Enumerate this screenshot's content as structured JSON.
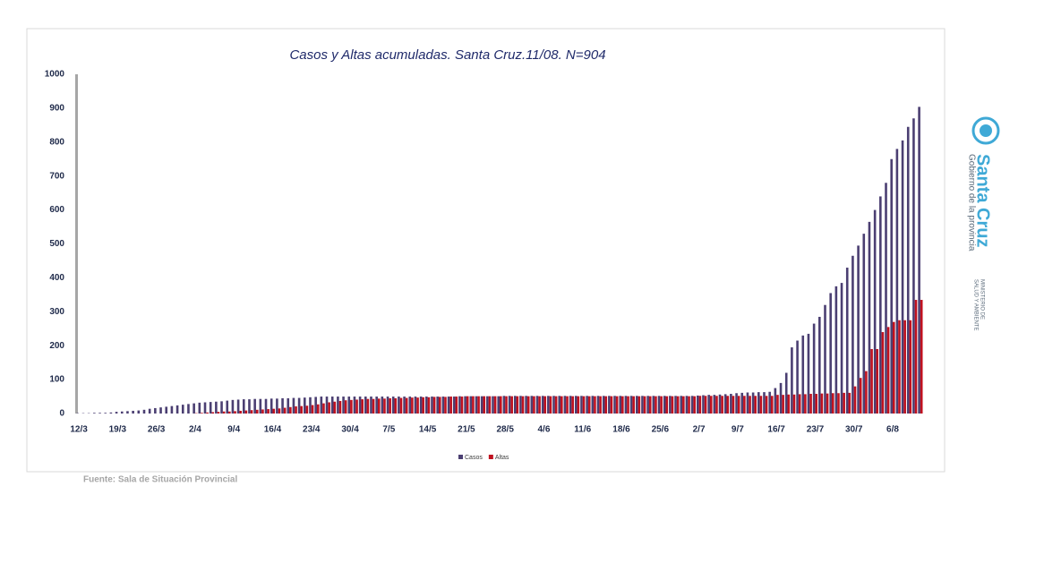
{
  "chart_data": {
    "type": "bar",
    "title": "Casos y Altas acumuladas. Santa Cruz.11/08. N=904",
    "categories": [
      "12/3",
      null,
      null,
      null,
      null,
      null,
      null,
      "19/3",
      null,
      null,
      null,
      null,
      null,
      null,
      "26/3",
      null,
      null,
      null,
      null,
      null,
      null,
      "2/4",
      null,
      null,
      null,
      null,
      null,
      null,
      "9/4",
      null,
      null,
      null,
      null,
      null,
      null,
      "16/4",
      null,
      null,
      null,
      null,
      null,
      null,
      "23/4",
      null,
      null,
      null,
      null,
      null,
      null,
      "30/4",
      null,
      null,
      null,
      null,
      null,
      null,
      "7/5",
      null,
      null,
      null,
      null,
      null,
      null,
      "14/5",
      null,
      null,
      null,
      null,
      null,
      null,
      "21/5",
      null,
      null,
      null,
      null,
      null,
      null,
      "28/5",
      null,
      null,
      null,
      null,
      null,
      null,
      "4/6",
      null,
      null,
      null,
      null,
      null,
      null,
      "11/6",
      null,
      null,
      null,
      null,
      null,
      null,
      "18/6",
      null,
      null,
      null,
      null,
      null,
      null,
      "25/6",
      null,
      null,
      null,
      null,
      null,
      null,
      "2/7",
      null,
      null,
      null,
      null,
      null,
      null,
      "9/7",
      null,
      null,
      null,
      null,
      null,
      null,
      "16/7",
      null,
      null,
      null,
      null,
      null,
      null,
      "23/7",
      null,
      null,
      null,
      null,
      null,
      null,
      "30/7",
      null,
      null,
      null,
      null,
      null,
      null,
      "6/8",
      null,
      null,
      null,
      null,
      null
    ],
    "series": [
      {
        "name": "Casos",
        "color": "#4b3f72",
        "values": [
          1,
          1,
          1,
          2,
          2,
          2,
          3,
          5,
          6,
          7,
          8,
          9,
          11,
          14,
          16,
          18,
          20,
          22,
          24,
          26,
          28,
          30,
          32,
          33,
          34,
          35,
          36,
          38,
          40,
          41,
          42,
          42,
          43,
          43,
          43,
          44,
          44,
          45,
          45,
          46,
          46,
          47,
          48,
          49,
          50,
          50,
          50,
          50,
          50,
          50,
          50,
          50,
          50,
          50,
          50,
          50,
          50,
          50,
          50,
          50,
          50,
          50,
          50,
          50,
          50,
          50,
          50,
          50,
          50,
          51,
          51,
          51,
          51,
          51,
          51,
          51,
          51,
          52,
          52,
          52,
          52,
          52,
          52,
          52,
          52,
          52,
          52,
          52,
          52,
          52,
          52,
          52,
          52,
          52,
          52,
          52,
          52,
          52,
          52,
          52,
          52,
          52,
          52,
          52,
          52,
          52,
          52,
          52,
          52,
          52,
          52,
          52,
          53,
          54,
          55,
          55,
          56,
          57,
          58,
          60,
          61,
          62,
          62,
          63,
          63,
          64,
          75,
          90,
          120,
          195,
          215,
          230,
          235,
          265,
          285,
          320,
          355,
          375,
          385,
          430,
          465,
          495,
          530,
          565,
          600,
          640,
          680,
          750,
          780,
          805,
          845,
          870,
          904
        ]
      },
      {
        "name": "Altas",
        "color": "#c0111f",
        "values": [
          0,
          0,
          0,
          0,
          0,
          0,
          0,
          0,
          0,
          0,
          0,
          0,
          0,
          0,
          0,
          0,
          0,
          0,
          0,
          0,
          0,
          1,
          2,
          3,
          4,
          5,
          6,
          6,
          7,
          8,
          9,
          10,
          11,
          12,
          13,
          14,
          15,
          17,
          19,
          21,
          22,
          23,
          25,
          27,
          30,
          33,
          35,
          37,
          39,
          40,
          41,
          42,
          43,
          43,
          44,
          44,
          45,
          45,
          46,
          46,
          47,
          47,
          48,
          48,
          49,
          49,
          49,
          50,
          50,
          50,
          51,
          51,
          51,
          51,
          51,
          51,
          51,
          51,
          51,
          51,
          51,
          51,
          51,
          51,
          51,
          51,
          51,
          51,
          51,
          51,
          51,
          51,
          51,
          51,
          51,
          51,
          51,
          51,
          51,
          51,
          51,
          51,
          51,
          51,
          51,
          51,
          51,
          51,
          51,
          51,
          51,
          51,
          52,
          52,
          52,
          52,
          52,
          52,
          52,
          52,
          52,
          52,
          52,
          52,
          52,
          52,
          55,
          55,
          56,
          56,
          57,
          57,
          58,
          58,
          59,
          59,
          60,
          60,
          61,
          61,
          80,
          105,
          125,
          190,
          190,
          240,
          255,
          270,
          275,
          275,
          275,
          335,
          335
        ]
      }
    ],
    "ylim": [
      0,
      1000
    ],
    "yticks": [
      0,
      100,
      200,
      300,
      400,
      500,
      600,
      700,
      800,
      900,
      1000
    ],
    "grid": false,
    "legend": "bottom"
  },
  "source": "Fuente: Sala de Situación Provincial",
  "logo": {
    "name": "Santa Cruz",
    "subtitle": "Gobierno de la provincia",
    "ministry": [
      "MINISTERIO DE",
      "SALUD Y AMBIENTE"
    ]
  }
}
